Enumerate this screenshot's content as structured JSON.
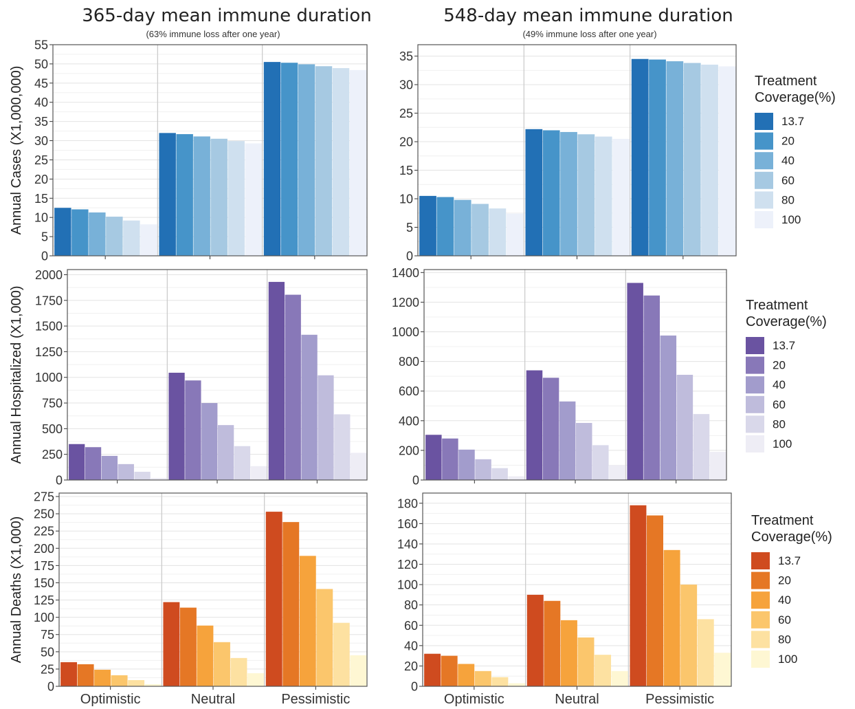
{
  "column_titles": [
    {
      "title": "365-day mean immune duration",
      "subtitle": "(63% immune loss after one year)"
    },
    {
      "title": "548-day mean immune duration",
      "subtitle": "(49% immune loss after one year)"
    }
  ],
  "legends": [
    {
      "title_line1": "Treatment",
      "title_line2": "Coverage(%)",
      "entries": [
        "13.7",
        "20",
        "40",
        "60",
        "80",
        "100"
      ],
      "colors": [
        "#2270b5",
        "#4694c9",
        "#78b1d8",
        "#a6c9e2",
        "#cfe0ef",
        "#edf1fa"
      ]
    },
    {
      "title_line1": "Treatment",
      "title_line2": "Coverage(%)",
      "entries": [
        "13.7",
        "20",
        "40",
        "60",
        "80",
        "100"
      ],
      "colors": [
        "#6a53a1",
        "#8878b8",
        "#a29ccc",
        "#bfbcdc",
        "#d9d8ea",
        "#eeedf5"
      ]
    },
    {
      "title_line1": "Treatment",
      "title_line2": "Coverage(%)",
      "entries": [
        "13.7",
        "20",
        "40",
        "60",
        "80",
        "100"
      ],
      "colors": [
        "#cf4b1f",
        "#e57725",
        "#f6a33c",
        "#fbc66c",
        "#fde1a1",
        "#fef7d3"
      ]
    }
  ],
  "chart_data": [
    {
      "type": "bar",
      "row": 0,
      "col": 0,
      "ylabel": "Annual Cases (X1,000,000)",
      "ylim": [
        0,
        55
      ],
      "yticks": [
        0,
        5,
        10,
        15,
        20,
        25,
        30,
        35,
        40,
        45,
        50,
        55
      ],
      "categories": [
        "Optimistic",
        "Neutral",
        "Pessimistic"
      ],
      "series": [
        {
          "name": "13.7",
          "values": [
            12.5,
            32.0,
            50.5
          ]
        },
        {
          "name": "20",
          "values": [
            12.1,
            31.7,
            50.3
          ]
        },
        {
          "name": "40",
          "values": [
            11.3,
            31.1,
            49.9
          ]
        },
        {
          "name": "60",
          "values": [
            10.2,
            30.5,
            49.4
          ]
        },
        {
          "name": "80",
          "values": [
            9.2,
            29.9,
            48.9
          ]
        },
        {
          "name": "100",
          "values": [
            8.2,
            29.3,
            48.4
          ]
        }
      ]
    },
    {
      "type": "bar",
      "row": 0,
      "col": 1,
      "ylabel": "",
      "ylim": [
        0,
        37
      ],
      "yticks": [
        0,
        5,
        10,
        15,
        20,
        25,
        30,
        35
      ],
      "categories": [
        "Optimistic",
        "Neutral",
        "Pessimistic"
      ],
      "series": [
        {
          "name": "13.7",
          "values": [
            10.5,
            22.2,
            34.5
          ]
        },
        {
          "name": "20",
          "values": [
            10.3,
            22.0,
            34.4
          ]
        },
        {
          "name": "40",
          "values": [
            9.8,
            21.7,
            34.1
          ]
        },
        {
          "name": "60",
          "values": [
            9.1,
            21.3,
            33.8
          ]
        },
        {
          "name": "80",
          "values": [
            8.3,
            20.9,
            33.5
          ]
        },
        {
          "name": "100",
          "values": [
            7.4,
            20.5,
            33.2
          ]
        }
      ]
    },
    {
      "type": "bar",
      "row": 1,
      "col": 0,
      "ylabel": "Annual Hospitalized (X1,000)",
      "ylim": [
        0,
        2050
      ],
      "yticks": [
        0,
        250,
        500,
        750,
        1000,
        1250,
        1500,
        1750,
        2000
      ],
      "categories": [
        "Optimistic",
        "Neutral",
        "Pessimistic"
      ],
      "series": [
        {
          "name": "13.7",
          "values": [
            350,
            1045,
            1930
          ]
        },
        {
          "name": "20",
          "values": [
            320,
            970,
            1805
          ]
        },
        {
          "name": "40",
          "values": [
            235,
            750,
            1415
          ]
        },
        {
          "name": "60",
          "values": [
            155,
            535,
            1020
          ]
        },
        {
          "name": "80",
          "values": [
            80,
            330,
            640
          ]
        },
        {
          "name": "100",
          "values": [
            20,
            135,
            265
          ]
        }
      ]
    },
    {
      "type": "bar",
      "row": 1,
      "col": 1,
      "ylabel": "",
      "ylim": [
        0,
        1420
      ],
      "yticks": [
        0,
        200,
        400,
        600,
        800,
        1000,
        1200,
        1400
      ],
      "categories": [
        "Optimistic",
        "Neutral",
        "Pessimistic"
      ],
      "series": [
        {
          "name": "13.7",
          "values": [
            305,
            740,
            1330
          ]
        },
        {
          "name": "20",
          "values": [
            280,
            690,
            1245
          ]
        },
        {
          "name": "40",
          "values": [
            205,
            530,
            975
          ]
        },
        {
          "name": "60",
          "values": [
            140,
            385,
            710
          ]
        },
        {
          "name": "80",
          "values": [
            80,
            235,
            445
          ]
        },
        {
          "name": "100",
          "values": [
            25,
            100,
            190
          ]
        }
      ]
    },
    {
      "type": "bar",
      "row": 2,
      "col": 0,
      "ylabel": "Annual Deaths (X1,000)",
      "ylim": [
        0,
        280
      ],
      "yticks": [
        0,
        25,
        50,
        75,
        100,
        125,
        150,
        175,
        200,
        225,
        250,
        275
      ],
      "categories": [
        "Optimistic",
        "Neutral",
        "Pessimistic"
      ],
      "series": [
        {
          "name": "13.7",
          "values": [
            35,
            122,
            253
          ]
        },
        {
          "name": "20",
          "values": [
            32,
            114,
            238
          ]
        },
        {
          "name": "40",
          "values": [
            24,
            88,
            189
          ]
        },
        {
          "name": "60",
          "values": [
            16,
            64,
            141
          ]
        },
        {
          "name": "80",
          "values": [
            9,
            41,
            92
          ]
        },
        {
          "name": "100",
          "values": [
            3,
            19,
            45
          ]
        }
      ]
    },
    {
      "type": "bar",
      "row": 2,
      "col": 1,
      "ylabel": "",
      "ylim": [
        0,
        190
      ],
      "yticks": [
        0,
        20,
        40,
        60,
        80,
        100,
        120,
        140,
        160,
        180
      ],
      "categories": [
        "Optimistic",
        "Neutral",
        "Pessimistic"
      ],
      "series": [
        {
          "name": "13.7",
          "values": [
            32,
            90,
            178
          ]
        },
        {
          "name": "20",
          "values": [
            30,
            84,
            168
          ]
        },
        {
          "name": "40",
          "values": [
            22,
            65,
            134
          ]
        },
        {
          "name": "60",
          "values": [
            15,
            48,
            100
          ]
        },
        {
          "name": "80",
          "values": [
            9,
            31,
            66
          ]
        },
        {
          "name": "100",
          "values": [
            3,
            15,
            33
          ]
        }
      ]
    }
  ]
}
